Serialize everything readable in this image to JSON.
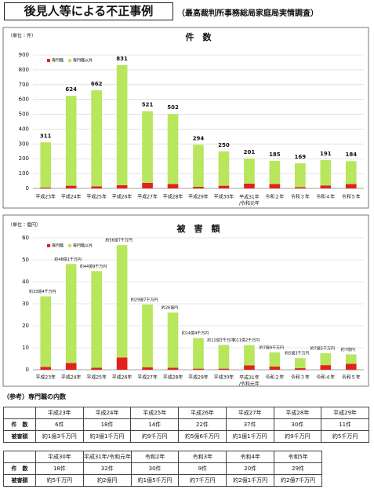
{
  "header": {
    "title": "後見人等による不正事例",
    "subtitle": "（最高裁判所事務総局家庭局実情調査）"
  },
  "chart_data": [
    {
      "type": "bar",
      "stacked": true,
      "title": "件　数",
      "unit": "（単位：件）",
      "legend": "upper left",
      "grid": true,
      "categories": [
        "平成23年",
        "平成24年",
        "平成25年",
        "平成26年",
        "平成27年",
        "平成28年",
        "平成29年",
        "平成30年",
        "平成31年/令和元年",
        "令和２年",
        "令和３年",
        "令和４年",
        "令和５年"
      ],
      "series": [
        {
          "name": "専門職",
          "color": "#e3211c",
          "values": [
            6,
            18,
            14,
            22,
            37,
            30,
            11,
            18,
            32,
            30,
            9,
            20,
            29
          ]
        },
        {
          "name": "専門職以外",
          "color": "#b8e65c",
          "values": [
            305,
            606,
            648,
            809,
            484,
            472,
            283,
            232,
            169,
            155,
            160,
            171,
            155
          ]
        }
      ],
      "totals": [
        311,
        624,
        662,
        831,
        521,
        502,
        294,
        250,
        201,
        185,
        169,
        191,
        184
      ],
      "ylim": [
        0,
        900
      ],
      "yticks": [
        0,
        100,
        200,
        300,
        400,
        500,
        600,
        700,
        800,
        900
      ]
    },
    {
      "type": "bar",
      "stacked": true,
      "title": "被　害　額",
      "unit": "（単位：億円）",
      "legend": "upper left",
      "grid": true,
      "categories": [
        "平成23年",
        "平成24年",
        "平成25年",
        "平成26年",
        "平成27年",
        "平成28年",
        "平成29年",
        "平成30年",
        "平成31年/令和元年",
        "令和２年",
        "令和３年",
        "令和４年",
        "令和５年"
      ],
      "series": [
        {
          "name": "専門職",
          "color": "#e3211c",
          "values": [
            1.3,
            3.1,
            0.9,
            5.6,
            1.1,
            0.9,
            0.5,
            0.5,
            2.0,
            1.5,
            0.7,
            2.1,
            2.7
          ]
        },
        {
          "name": "専門職以外",
          "color": "#b8e65c",
          "values": [
            32.1,
            45.0,
            44.0,
            51.1,
            28.6,
            25.1,
            13.9,
            10.8,
            9.2,
            6.4,
            4.6,
            5.4,
            4.3
          ]
        }
      ],
      "totals": [
        33.4,
        48.1,
        44.9,
        56.7,
        29.7,
        26,
        14.4,
        11.3,
        11.2,
        7.9,
        5.3,
        7.5,
        7.0
      ],
      "totals_labels": [
        "約33億4千万円",
        "約48億1千万円",
        "約44億9千万円",
        "約56億7千万円",
        "約29億7千万円",
        "約26億円",
        "約14億4千万円",
        "約11億3千万円",
        "約11億2千万円",
        "約7億9千万円",
        "約5億3千万円",
        "約7億5千万円",
        "約7億円"
      ],
      "ylim": [
        0,
        60
      ],
      "yticks": [
        0,
        10,
        20,
        30,
        40,
        50,
        60
      ]
    }
  ],
  "reference": {
    "title": "（参考）専門職の内数",
    "tables": [
      {
        "years": [
          "平成23年",
          "平成24年",
          "平成25年",
          "平成26年",
          "平成27年",
          "平成28年",
          "平成29年"
        ],
        "rows": [
          {
            "label": "件　数",
            "cells": [
              "6件",
              "18件",
              "14件",
              "22件",
              "37件",
              "30件",
              "11件"
            ]
          },
          {
            "label": "被害額",
            "cells": [
              "約1億3千万円",
              "約3億1千万円",
              "約9千万円",
              "約5億6千万円",
              "約1億1千万円",
              "約9千万円",
              "約5千万円"
            ]
          }
        ]
      },
      {
        "years": [
          "平成30年",
          "平成31年/令和元年",
          "令和2年",
          "令和3年",
          "令和4年",
          "令和5年"
        ],
        "rows": [
          {
            "label": "件　数",
            "cells": [
              "18件",
              "32件",
              "30件",
              "9件",
              "20件",
              "29件"
            ]
          },
          {
            "label": "被害額",
            "cells": [
              "約5千万円",
              "約2億円",
              "約1億5千万円",
              "約7千万円",
              "約2億1千万円",
              "約2億7千万円"
            ]
          }
        ]
      }
    ]
  }
}
